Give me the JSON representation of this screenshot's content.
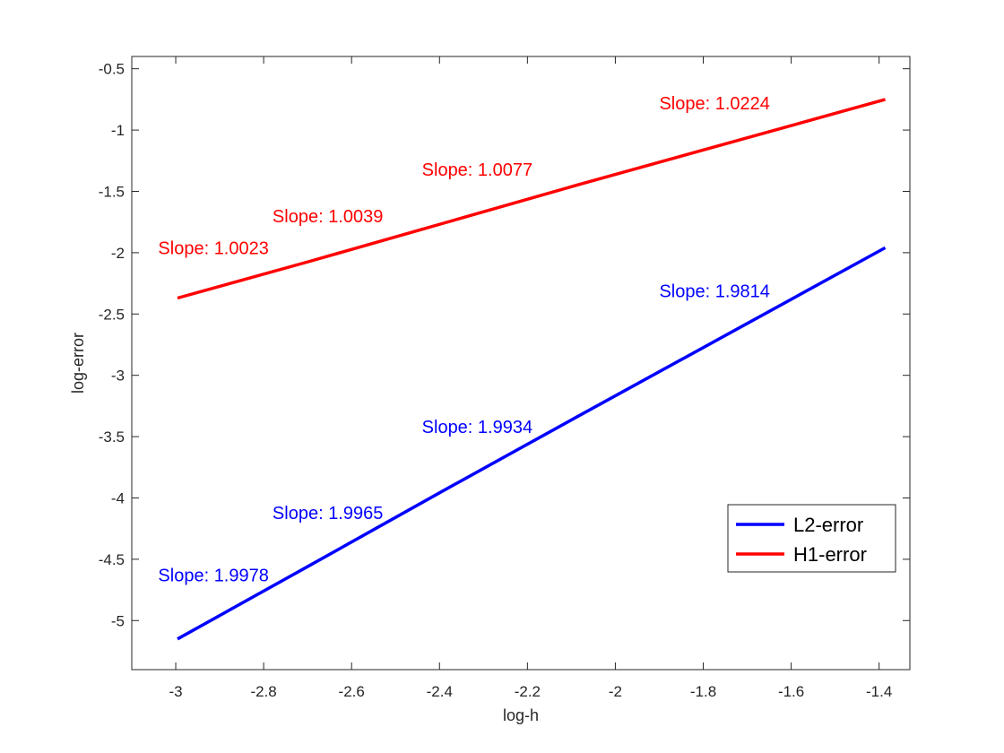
{
  "chart_data": {
    "type": "line",
    "xlabel": "log-h",
    "ylabel": "log-error",
    "xlim": [
      -3.1,
      -1.33
    ],
    "ylim": [
      -5.4,
      -0.4
    ],
    "x_ticks": [
      -3,
      -2.8,
      -2.6,
      -2.4,
      -2.2,
      -2,
      -1.8,
      -1.6,
      -1.4
    ],
    "x_tick_labels": [
      "-3",
      "-2.8",
      "-2.6",
      "-2.4",
      "-2.2",
      "-2",
      "-1.8",
      "-1.6",
      "-1.4"
    ],
    "y_ticks": [
      -0.5,
      -1,
      -1.5,
      -2,
      -2.5,
      -3,
      -3.5,
      -4,
      -4.5,
      -5
    ],
    "y_tick_labels": [
      "-0.5",
      "-1",
      "-1.5",
      "-2",
      "-2.5",
      "-3",
      "-3.5",
      "-4",
      "-4.5",
      "-5"
    ],
    "grid": false,
    "legend_position": "bottom-right",
    "series": [
      {
        "name": "L2-error",
        "color": "#0000ff",
        "x": [
          -2.996,
          -2.695,
          -2.391,
          -2.088,
          -1.386
        ],
        "y": [
          -5.15,
          -4.55,
          -3.94,
          -3.34,
          -1.96
        ]
      },
      {
        "name": "H1-error",
        "color": "#ff0000",
        "x": [
          -2.996,
          -2.695,
          -2.391,
          -2.088,
          -1.386
        ],
        "y": [
          -2.37,
          -2.07,
          -1.76,
          -1.45,
          -0.75
        ]
      }
    ],
    "annotations": [
      {
        "text": "Slope: 1.0224",
        "x": -1.9,
        "y": -0.78,
        "color": "#ff0000"
      },
      {
        "text": "Slope: 1.0077",
        "x": -2.44,
        "y": -1.32,
        "color": "#ff0000"
      },
      {
        "text": "Slope: 1.0039",
        "x": -2.78,
        "y": -1.7,
        "color": "#ff0000"
      },
      {
        "text": "Slope: 1.0023",
        "x": -3.04,
        "y": -1.96,
        "color": "#ff0000"
      },
      {
        "text": "Slope: 1.9814",
        "x": -1.9,
        "y": -2.31,
        "color": "#0000ff"
      },
      {
        "text": "Slope: 1.9934",
        "x": -2.44,
        "y": -3.42,
        "color": "#0000ff"
      },
      {
        "text": "Slope: 1.9965",
        "x": -2.78,
        "y": -4.12,
        "color": "#0000ff"
      },
      {
        "text": "Slope: 1.9978",
        "x": -3.04,
        "y": -4.63,
        "color": "#0000ff"
      }
    ]
  }
}
